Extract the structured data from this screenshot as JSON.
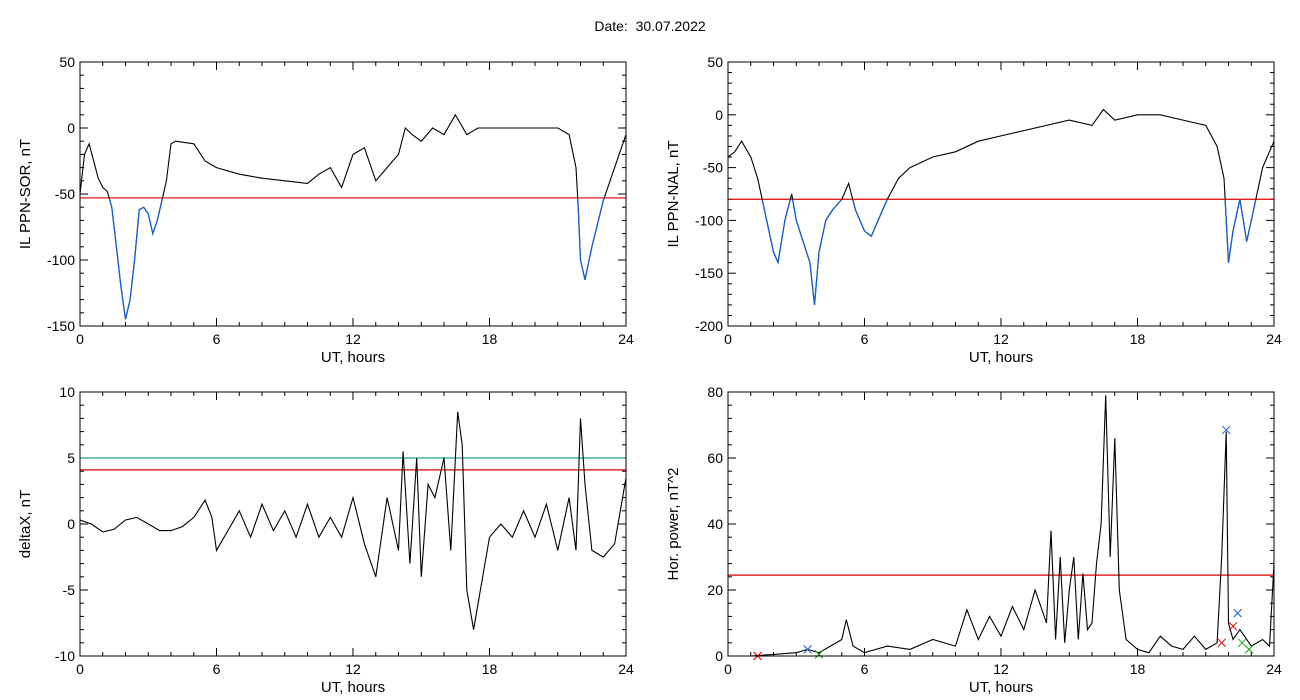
{
  "title": "Date:  30.07.2022",
  "chart_data": [
    {
      "type": "line",
      "xlabel": "UT, hours",
      "ylabel": "IL PPN-SOR, nT",
      "xlim": [
        0,
        24
      ],
      "ylim": [
        -150,
        50
      ],
      "xticks": [
        0,
        6,
        12,
        18,
        24
      ],
      "yticks": [
        50,
        0,
        -50,
        -100,
        -150
      ],
      "threshold": {
        "value": -53,
        "color": "#e00000"
      },
      "highlight_below_threshold": {
        "color": "#1a5fd0"
      },
      "series": [
        {
          "color": "#000000",
          "x": [
            0,
            0.2,
            0.4,
            0.6,
            0.8,
            1.0,
            1.2,
            1.4,
            1.6,
            1.8,
            2.0,
            2.2,
            2.4,
            2.6,
            2.8,
            3.0,
            3.2,
            3.4,
            3.6,
            3.8,
            4.0,
            4.2,
            5.0,
            5.5,
            6.0,
            7.0,
            8.0,
            9.0,
            10.0,
            10.5,
            11.0,
            11.5,
            12.0,
            12.5,
            13.0,
            13.5,
            14.0,
            14.3,
            14.6,
            15.0,
            15.5,
            16.0,
            16.5,
            17.0,
            17.5,
            18.0,
            19.0,
            20.0,
            21.0,
            21.5,
            21.8,
            21.9,
            22.0,
            22.2,
            22.5,
            23.0,
            23.5,
            24.0
          ],
          "y": [
            -50,
            -20,
            -12,
            -25,
            -38,
            -45,
            -48,
            -60,
            -90,
            -120,
            -145,
            -130,
            -100,
            -62,
            -60,
            -65,
            -80,
            -70,
            -55,
            -40,
            -12,
            -10,
            -12,
            -25,
            -30,
            -35,
            -38,
            -40,
            -42,
            -35,
            -30,
            -45,
            -20,
            -15,
            -40,
            -30,
            -20,
            0,
            -5,
            -10,
            0,
            -5,
            10,
            -5,
            0,
            0,
            0,
            0,
            0,
            -5,
            -30,
            -60,
            -100,
            -115,
            -90,
            -55,
            -30,
            -5
          ]
        }
      ]
    },
    {
      "type": "line",
      "xlabel": "UT, hours",
      "ylabel": "IL PPN-NAL, nT",
      "xlim": [
        0,
        24
      ],
      "ylim": [
        -200,
        50
      ],
      "xticks": [
        0,
        6,
        12,
        18,
        24
      ],
      "yticks": [
        50,
        0,
        -50,
        -100,
        -150,
        -200
      ],
      "threshold": {
        "value": -80,
        "color": "#e00000"
      },
      "highlight_below_threshold": {
        "color": "#1a5fd0"
      },
      "series": [
        {
          "color": "#000000",
          "x": [
            0,
            0.3,
            0.6,
            1.0,
            1.3,
            1.6,
            2.0,
            2.2,
            2.5,
            2.8,
            3.0,
            3.3,
            3.6,
            3.8,
            4.0,
            4.3,
            4.6,
            5.0,
            5.3,
            5.6,
            6.0,
            6.3,
            6.6,
            7.0,
            7.5,
            8.0,
            9.0,
            10.0,
            11.0,
            12.0,
            13.0,
            14.0,
            15.0,
            16.0,
            16.5,
            17.0,
            18.0,
            19.0,
            20.0,
            21.0,
            21.5,
            21.8,
            22.0,
            22.2,
            22.5,
            22.8,
            23.0,
            23.5,
            24.0
          ],
          "y": [
            -40,
            -35,
            -25,
            -40,
            -60,
            -90,
            -130,
            -140,
            -100,
            -75,
            -100,
            -120,
            -140,
            -180,
            -130,
            -100,
            -90,
            -80,
            -65,
            -90,
            -110,
            -115,
            -100,
            -80,
            -60,
            -50,
            -40,
            -35,
            -25,
            -20,
            -15,
            -10,
            -5,
            -10,
            5,
            -5,
            0,
            0,
            -5,
            -10,
            -30,
            -60,
            -140,
            -110,
            -80,
            -120,
            -100,
            -50,
            -25
          ]
        }
      ]
    },
    {
      "type": "line",
      "xlabel": "UT, hours",
      "ylabel": "deltaX, nT",
      "xlim": [
        0,
        24
      ],
      "ylim": [
        -10,
        10
      ],
      "xticks": [
        0,
        6,
        12,
        18,
        24
      ],
      "yticks": [
        10,
        5,
        0,
        -5,
        -10
      ],
      "thresholds": [
        {
          "value": 5,
          "color": "#1f9aa0"
        },
        {
          "value": 4.1,
          "color": "#e00000"
        }
      ],
      "series": [
        {
          "color": "#000000",
          "x": [
            0,
            0.5,
            1.0,
            1.5,
            2.0,
            2.5,
            3.0,
            3.5,
            4.0,
            4.5,
            5.0,
            5.5,
            5.8,
            6.0,
            6.5,
            7.0,
            7.5,
            8.0,
            8.5,
            9.0,
            9.5,
            10.0,
            10.5,
            11.0,
            11.5,
            12.0,
            12.5,
            13.0,
            13.5,
            14.0,
            14.2,
            14.5,
            14.8,
            15.0,
            15.3,
            15.6,
            16.0,
            16.3,
            16.6,
            16.8,
            17.0,
            17.3,
            17.6,
            18.0,
            18.5,
            19.0,
            19.5,
            20.0,
            20.5,
            21.0,
            21.5,
            21.8,
            22.0,
            22.2,
            22.5,
            23.0,
            23.5,
            24.0
          ],
          "y": [
            0.3,
            0,
            -0.6,
            -0.4,
            0.3,
            0.5,
            0,
            -0.5,
            -0.5,
            -0.2,
            0.5,
            1.8,
            0.5,
            -2,
            -0.5,
            1,
            -1,
            1.5,
            -0.5,
            1,
            -1,
            1.5,
            -1,
            0.5,
            -1,
            2,
            -1.5,
            -4,
            2,
            -2,
            5.5,
            -3,
            5,
            -4,
            3,
            2,
            5,
            -2,
            8.5,
            6,
            -5,
            -8,
            -5,
            -1,
            0,
            -1,
            1,
            -1,
            1.5,
            -2,
            2,
            -2,
            8,
            3,
            -2,
            -2.5,
            -1.5,
            3.5
          ]
        }
      ]
    },
    {
      "type": "line",
      "xlabel": "UT, hours",
      "ylabel": "Hor. power, nT^2",
      "xlim": [
        0,
        24
      ],
      "ylim": [
        0,
        80
      ],
      "xticks": [
        0,
        6,
        12,
        18,
        24
      ],
      "yticks": [
        80,
        60,
        40,
        20,
        0
      ],
      "threshold": {
        "value": 24.5,
        "color": "#e00000"
      },
      "series": [
        {
          "color": "#000000",
          "x": [
            0,
            1.0,
            2.0,
            3.0,
            3.5,
            4.0,
            4.5,
            5.0,
            5.2,
            5.5,
            6.0,
            7.0,
            8.0,
            9.0,
            10.0,
            10.5,
            11.0,
            11.5,
            12.0,
            12.5,
            13.0,
            13.5,
            14.0,
            14.2,
            14.4,
            14.6,
            14.8,
            15.0,
            15.2,
            15.4,
            15.6,
            15.8,
            16.0,
            16.2,
            16.4,
            16.6,
            16.8,
            17.0,
            17.2,
            17.5,
            18.0,
            18.5,
            19.0,
            19.5,
            20.0,
            20.5,
            21.0,
            21.5,
            21.7,
            21.9,
            22.0,
            22.2,
            22.5,
            23.0,
            23.5,
            23.8,
            24.0
          ],
          "y": [
            0,
            0,
            0.5,
            1,
            2,
            1,
            3,
            5,
            11,
            3,
            1,
            3,
            2,
            5,
            3,
            14,
            5,
            12,
            6,
            15,
            8,
            20,
            10,
            38,
            5,
            30,
            4,
            20,
            30,
            5,
            25,
            8,
            10,
            28,
            40,
            79,
            30,
            66,
            20,
            5,
            2,
            1,
            6,
            3,
            2,
            6,
            2,
            4,
            30,
            68,
            10,
            5,
            8,
            3,
            5,
            3,
            28
          ]
        }
      ],
      "markers": [
        {
          "x": 1.3,
          "y": 0,
          "color": "#e00000",
          "symbol": "x"
        },
        {
          "x": 3.5,
          "y": 2,
          "color": "#1a5fd0",
          "symbol": "x"
        },
        {
          "x": 4.0,
          "y": 0.5,
          "color": "#20a020",
          "symbol": "x"
        },
        {
          "x": 21.9,
          "y": 68.5,
          "color": "#1a5fd0",
          "symbol": "x"
        },
        {
          "x": 21.7,
          "y": 4,
          "color": "#e00000",
          "symbol": "x"
        },
        {
          "x": 22.4,
          "y": 13,
          "color": "#1a5fd0",
          "symbol": "x"
        },
        {
          "x": 22.2,
          "y": 9,
          "color": "#e00000",
          "symbol": "x"
        },
        {
          "x": 22.6,
          "y": 4,
          "color": "#20a020",
          "symbol": "x"
        },
        {
          "x": 22.9,
          "y": 2,
          "color": "#20a020",
          "symbol": "x"
        }
      ]
    }
  ]
}
